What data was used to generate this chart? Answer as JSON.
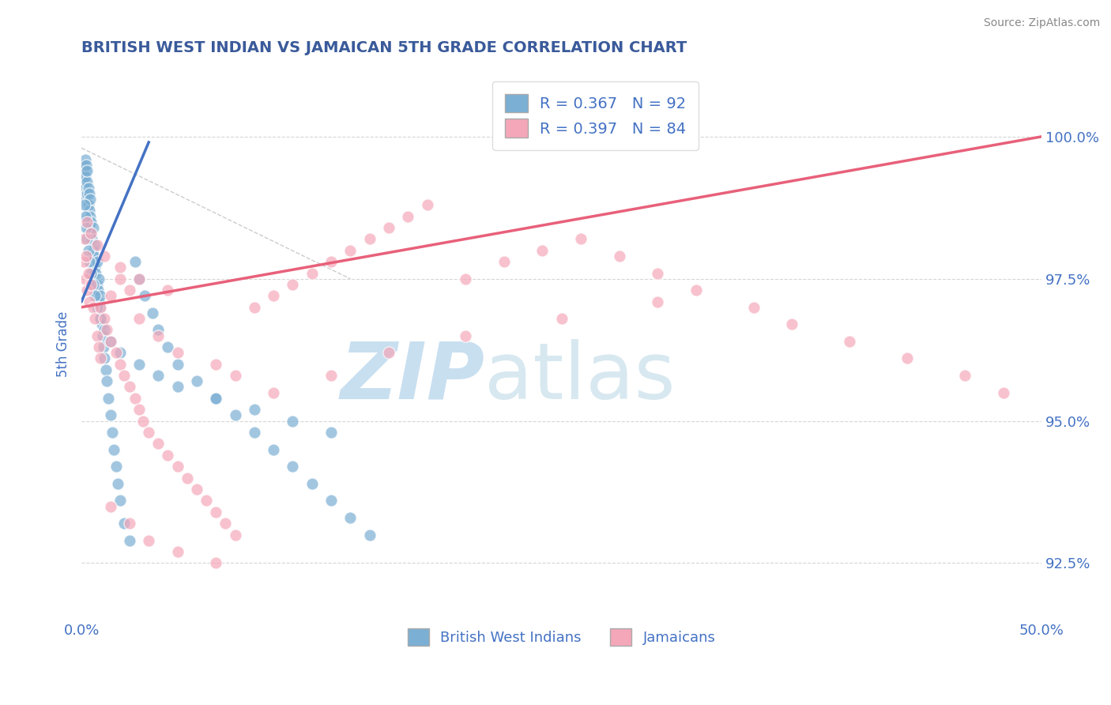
{
  "title": "BRITISH WEST INDIAN VS JAMAICAN 5TH GRADE CORRELATION CHART",
  "source_text": "Source: ZipAtlas.com",
  "ylabel": "5th Grade",
  "xmin": 0.0,
  "xmax": 50.0,
  "ymin": 91.5,
  "ymax": 101.2,
  "ytick_positions": [
    92.5,
    95.0,
    97.5,
    100.0
  ],
  "color_blue": "#7bafd4",
  "color_pink": "#f4a7b9",
  "color_blue_line": "#4472c4",
  "color_pink_line": "#e8607a",
  "color_text": "#4472c4",
  "watermark_zip": "ZIP",
  "watermark_atlas": "atlas",
  "watermark_color_zip": "#c8dff0",
  "watermark_color_atlas": "#d8e8f0",
  "title_color": "#3a5a9a",
  "blue_trendline_x": [
    0.0,
    3.5
  ],
  "blue_trendline_y": [
    97.1,
    99.9
  ],
  "pink_trendline_x": [
    0.0,
    50.0
  ],
  "pink_trendline_y": [
    97.0,
    100.0
  ],
  "blue_scatter_x": [
    0.1,
    0.12,
    0.15,
    0.18,
    0.2,
    0.2,
    0.22,
    0.25,
    0.25,
    0.28,
    0.3,
    0.3,
    0.3,
    0.32,
    0.35,
    0.35,
    0.38,
    0.4,
    0.4,
    0.42,
    0.45,
    0.45,
    0.5,
    0.5,
    0.55,
    0.6,
    0.6,
    0.65,
    0.7,
    0.7,
    0.75,
    0.8,
    0.8,
    0.85,
    0.9,
    0.9,
    0.95,
    1.0,
    1.0,
    1.05,
    1.1,
    1.15,
    1.2,
    1.25,
    1.3,
    1.4,
    1.5,
    1.6,
    1.7,
    1.8,
    1.9,
    2.0,
    2.2,
    2.5,
    2.8,
    3.0,
    3.3,
    3.7,
    4.0,
    4.5,
    5.0,
    6.0,
    7.0,
    8.0,
    9.0,
    10.0,
    11.0,
    12.0,
    13.0,
    14.0,
    15.0,
    0.15,
    0.2,
    0.25,
    0.3,
    0.35,
    0.4,
    0.5,
    0.6,
    0.7,
    0.8,
    1.0,
    1.2,
    1.5,
    2.0,
    3.0,
    4.0,
    5.0,
    7.0,
    9.0,
    11.0,
    13.0
  ],
  "blue_scatter_y": [
    99.3,
    99.5,
    99.2,
    99.4,
    99.6,
    99.1,
    99.3,
    99.5,
    98.9,
    99.2,
    99.4,
    98.8,
    99.0,
    98.6,
    98.8,
    99.1,
    98.5,
    98.7,
    99.0,
    98.4,
    98.6,
    98.9,
    98.3,
    98.5,
    98.2,
    98.0,
    98.4,
    97.9,
    97.7,
    98.1,
    97.6,
    97.4,
    97.8,
    97.3,
    97.1,
    97.5,
    97.0,
    96.8,
    97.2,
    96.7,
    96.5,
    96.3,
    96.1,
    95.9,
    95.7,
    95.4,
    95.1,
    94.8,
    94.5,
    94.2,
    93.9,
    93.6,
    93.2,
    92.9,
    97.8,
    97.5,
    97.2,
    96.9,
    96.6,
    96.3,
    96.0,
    95.7,
    95.4,
    95.1,
    94.8,
    94.5,
    94.2,
    93.9,
    93.6,
    93.3,
    93.0,
    98.8,
    98.6,
    98.4,
    98.2,
    98.0,
    97.8,
    97.6,
    97.4,
    97.2,
    97.0,
    96.8,
    96.6,
    96.4,
    96.2,
    96.0,
    95.8,
    95.6,
    95.4,
    95.2,
    95.0,
    94.8
  ],
  "pink_scatter_x": [
    0.1,
    0.15,
    0.2,
    0.25,
    0.3,
    0.35,
    0.4,
    0.5,
    0.6,
    0.7,
    0.8,
    0.9,
    1.0,
    1.0,
    1.2,
    1.3,
    1.5,
    1.5,
    1.8,
    2.0,
    2.0,
    2.2,
    2.5,
    2.5,
    2.8,
    3.0,
    3.0,
    3.2,
    3.5,
    4.0,
    4.0,
    4.5,
    5.0,
    5.0,
    5.5,
    6.0,
    6.5,
    7.0,
    7.0,
    7.5,
    8.0,
    8.0,
    9.0,
    10.0,
    11.0,
    12.0,
    13.0,
    14.0,
    15.0,
    16.0,
    17.0,
    18.0,
    20.0,
    22.0,
    24.0,
    26.0,
    28.0,
    30.0,
    32.0,
    35.0,
    37.0,
    40.0,
    43.0,
    46.0,
    48.0,
    1.5,
    2.5,
    3.5,
    5.0,
    7.0,
    10.0,
    13.0,
    16.0,
    20.0,
    25.0,
    30.0,
    0.3,
    0.5,
    0.8,
    1.2,
    2.0,
    3.0,
    4.5
  ],
  "pink_scatter_y": [
    97.8,
    98.2,
    97.5,
    97.9,
    97.3,
    97.6,
    97.1,
    97.4,
    97.0,
    96.8,
    96.5,
    96.3,
    96.1,
    97.0,
    96.8,
    96.6,
    96.4,
    97.2,
    96.2,
    96.0,
    97.5,
    95.8,
    95.6,
    97.3,
    95.4,
    95.2,
    96.8,
    95.0,
    94.8,
    94.6,
    96.5,
    94.4,
    94.2,
    96.2,
    94.0,
    93.8,
    93.6,
    93.4,
    96.0,
    93.2,
    93.0,
    95.8,
    97.0,
    97.2,
    97.4,
    97.6,
    97.8,
    98.0,
    98.2,
    98.4,
    98.6,
    98.8,
    97.5,
    97.8,
    98.0,
    98.2,
    97.9,
    97.6,
    97.3,
    97.0,
    96.7,
    96.4,
    96.1,
    95.8,
    95.5,
    93.5,
    93.2,
    92.9,
    92.7,
    92.5,
    95.5,
    95.8,
    96.2,
    96.5,
    96.8,
    97.1,
    98.5,
    98.3,
    98.1,
    97.9,
    97.7,
    97.5,
    97.3
  ]
}
